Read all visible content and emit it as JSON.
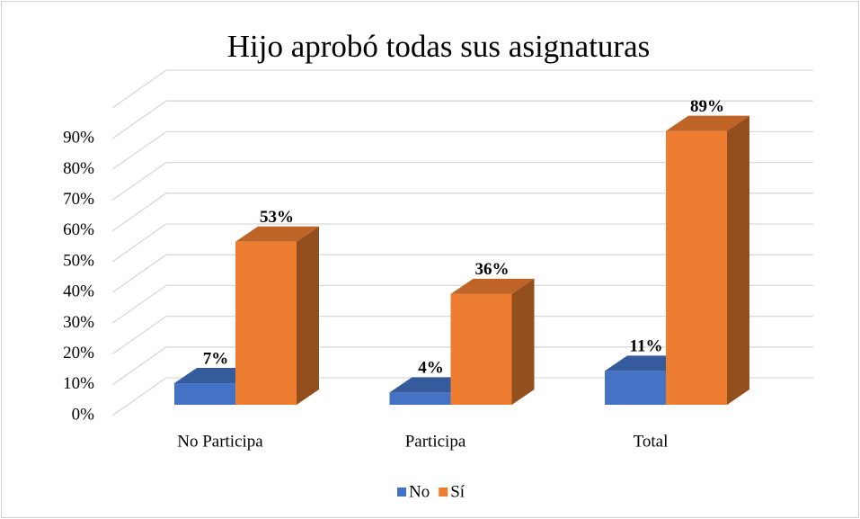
{
  "chart_data": {
    "type": "bar3d",
    "title": "Hijo aprobó todas sus asignaturas",
    "categories": [
      "No Participa",
      "Participa",
      "Total"
    ],
    "series": [
      {
        "name": "No",
        "color": "#4472c4",
        "values": [
          7,
          4,
          11
        ],
        "value_labels": [
          "7%",
          "4%",
          "11%"
        ]
      },
      {
        "name": "Sí",
        "color": "#ed7d31",
        "values": [
          53,
          36,
          89
        ],
        "value_labels": [
          "53%",
          "36%",
          "89%"
        ]
      }
    ],
    "ylim": [
      0,
      100
    ],
    "yticks": [
      {
        "value": 0,
        "label": "0%"
      },
      {
        "value": 10,
        "label": "10%"
      },
      {
        "value": 20,
        "label": "20%"
      },
      {
        "value": 30,
        "label": "30%"
      },
      {
        "value": 40,
        "label": "40%"
      },
      {
        "value": 50,
        "label": "50%"
      },
      {
        "value": 60,
        "label": "60%"
      },
      {
        "value": 70,
        "label": "70%"
      },
      {
        "value": 80,
        "label": "80%"
      },
      {
        "value": 90,
        "label": "90%"
      }
    ],
    "grid": true,
    "legend": "bottom"
  }
}
